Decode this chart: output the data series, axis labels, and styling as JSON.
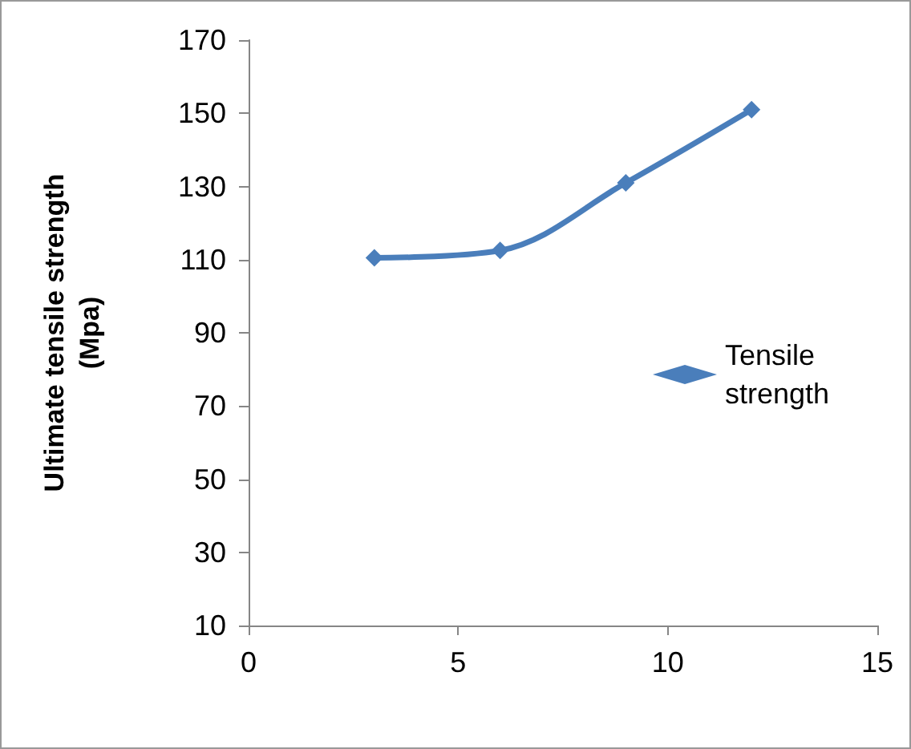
{
  "chart_data": {
    "type": "line",
    "ylabel": "Ultimate tensile strength\n(Mpa)",
    "x": [
      3,
      6,
      9,
      12
    ],
    "series": [
      {
        "name": "Tensile strength",
        "color": "#4a7ebb",
        "values": [
          110.5,
          112.5,
          131,
          151
        ]
      }
    ],
    "xlim": [
      0,
      15
    ],
    "xticks": [
      0,
      5,
      10,
      15
    ],
    "ylim": [
      10,
      170
    ],
    "yticks": [
      10,
      30,
      50,
      70,
      90,
      110,
      130,
      150,
      170
    ],
    "grid": false,
    "legend": "right",
    "marker": "diamond",
    "line_style": "solid"
  }
}
